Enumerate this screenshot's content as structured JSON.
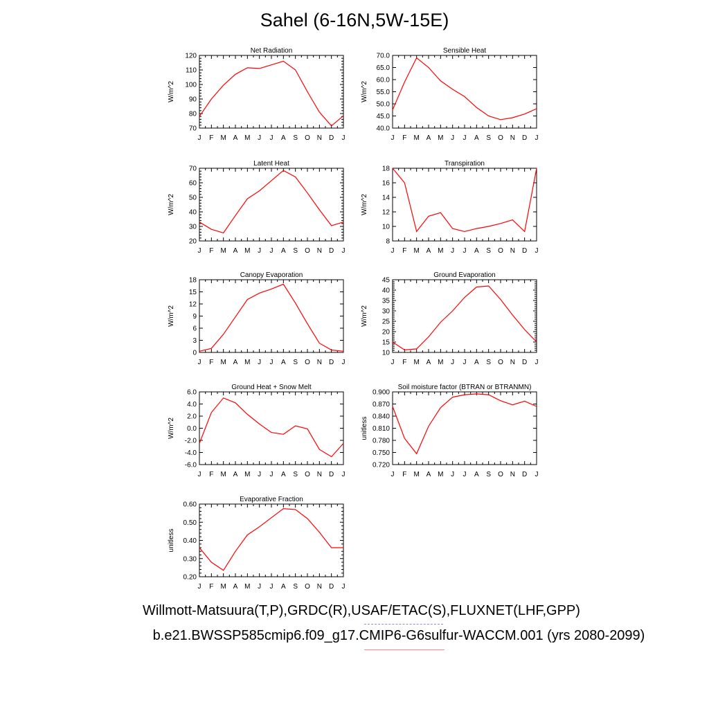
{
  "page_title": "Sahel (6-16N,5W-15E)",
  "footer": {
    "line1": "Willmott-Matsuura(T,P),GRDC(R),USAF/ETAC(S),FLUXNET(LHF,GPP)",
    "line2": "b.e21.BWSSP585cmip6.f09_g17.CMIP6-G6sulfur-WACCM.001 (yrs 2080-2099)"
  },
  "colors": {
    "series": "#ff0000",
    "axis": "#000000",
    "ul_dashed": "#8a8af0",
    "ul_solid": "#f08a8a"
  },
  "chart_data": [
    {
      "type": "line",
      "title": "Net Radiation",
      "ylabel": "W/m^2",
      "xlabel": "",
      "categories": [
        "J",
        "F",
        "M",
        "A",
        "M",
        "J",
        "J",
        "A",
        "S",
        "O",
        "N",
        "D",
        "J"
      ],
      "values": [
        78,
        90,
        99.5,
        107,
        111.5,
        111,
        113.5,
        116,
        110,
        95,
        81,
        71.5,
        78.5
      ],
      "ylim": [
        70,
        120
      ],
      "yticks": [
        "70",
        "80",
        "90",
        "100",
        "110",
        "120"
      ],
      "ytick_values": [
        70,
        80,
        90,
        100,
        110,
        120
      ],
      "yminor": 5
    },
    {
      "type": "line",
      "title": "Sensible Heat",
      "ylabel": "W/m^2",
      "xlabel": "",
      "categories": [
        "J",
        "F",
        "M",
        "A",
        "M",
        "J",
        "J",
        "A",
        "S",
        "O",
        "N",
        "D",
        "J"
      ],
      "values": [
        47.5,
        59,
        69,
        65,
        59.5,
        56,
        53,
        48.5,
        45,
        43.5,
        44.3,
        45.8,
        48
      ],
      "ylim": [
        40,
        70
      ],
      "yticks": [
        "40.0",
        "45.0",
        "50.0",
        "55.0",
        "60.0",
        "65.0",
        "70.0"
      ],
      "ytick_values": [
        40,
        45,
        50,
        55,
        60,
        65,
        70
      ],
      "yminor": 1
    },
    {
      "type": "line",
      "title": "Latent Heat",
      "ylabel": "W/m^2",
      "xlabel": "",
      "categories": [
        "J",
        "F",
        "M",
        "A",
        "M",
        "J",
        "J",
        "A",
        "S",
        "O",
        "N",
        "D",
        "J"
      ],
      "values": [
        33,
        28,
        25.5,
        37.5,
        49,
        54.5,
        61.5,
        68.5,
        64,
        53,
        41.5,
        30.5,
        33
      ],
      "ylim": [
        20,
        70
      ],
      "yticks": [
        "20",
        "30",
        "40",
        "50",
        "60",
        "70"
      ],
      "ytick_values": [
        20,
        30,
        40,
        50,
        60,
        70
      ],
      "yminor": 5
    },
    {
      "type": "line",
      "title": "Transpiration",
      "ylabel": "W/m^2",
      "xlabel": "",
      "categories": [
        "J",
        "F",
        "M",
        "A",
        "M",
        "J",
        "J",
        "A",
        "S",
        "O",
        "N",
        "D",
        "J"
      ],
      "values": [
        18,
        16,
        9.3,
        11.4,
        11.9,
        9.7,
        9.3,
        9.7,
        10,
        10.4,
        10.9,
        9.3,
        18
      ],
      "ylim": [
        8,
        18
      ],
      "yticks": [
        "8",
        "10",
        "12",
        "14",
        "16",
        "18"
      ],
      "ytick_values": [
        8,
        10,
        12,
        14,
        16,
        18
      ],
      "yminor": 1
    },
    {
      "type": "line",
      "title": "Canopy Evaporation",
      "ylabel": "W/m^2",
      "xlabel": "",
      "categories": [
        "J",
        "F",
        "M",
        "A",
        "M",
        "J",
        "J",
        "A",
        "S",
        "O",
        "N",
        "D",
        "J"
      ],
      "values": [
        0.3,
        1,
        4.5,
        8.8,
        13.1,
        14.7,
        15.7,
        16.9,
        12.2,
        7.1,
        2.3,
        0.6,
        0.3
      ],
      "ylim": [
        0,
        18
      ],
      "yticks": [
        "0",
        "3",
        "6",
        "9",
        "12",
        "15",
        "18"
      ],
      "ytick_values": [
        0,
        3,
        6,
        9,
        12,
        15,
        18
      ],
      "yminor": 1
    },
    {
      "type": "line",
      "title": "Ground Evaporation",
      "ylabel": "W/m^2",
      "xlabel": "",
      "categories": [
        "J",
        "F",
        "M",
        "A",
        "M",
        "J",
        "J",
        "A",
        "S",
        "O",
        "N",
        "D",
        "J"
      ],
      "values": [
        15,
        11.2,
        11.7,
        17.5,
        24.5,
        30,
        36.5,
        41.5,
        42,
        35.5,
        28,
        21,
        15
      ],
      "ylim": [
        10,
        45
      ],
      "yticks": [
        "10",
        "15",
        "20",
        "25",
        "30",
        "35",
        "40",
        "45"
      ],
      "ytick_values": [
        10,
        15,
        20,
        25,
        30,
        35,
        40,
        45
      ],
      "yminor": 5
    },
    {
      "type": "line",
      "title": "Ground Heat + Snow Melt",
      "ylabel": "W/m^2",
      "xlabel": "",
      "categories": [
        "J",
        "F",
        "M",
        "A",
        "M",
        "J",
        "J",
        "A",
        "S",
        "O",
        "N",
        "D",
        "J"
      ],
      "values": [
        -2.5,
        2.6,
        5,
        4.2,
        2.3,
        0.7,
        -0.7,
        -1,
        0.4,
        -0.1,
        -3.5,
        -4.7,
        -2.5
      ],
      "ylim": [
        -6,
        6
      ],
      "yticks": [
        "-6.0",
        "-4.0",
        "-2.0",
        "0.0",
        "2.0",
        "4.0",
        "6.0"
      ],
      "ytick_values": [
        -6,
        -4,
        -2,
        0,
        2,
        4,
        6
      ],
      "yminor": 1
    },
    {
      "type": "line",
      "title": "Soil moisture factor (BTRAN or BTRANMN)",
      "ylabel": "unitless",
      "xlabel": "",
      "categories": [
        "J",
        "F",
        "M",
        "A",
        "M",
        "J",
        "J",
        "A",
        "S",
        "O",
        "N",
        "D",
        "J"
      ],
      "values": [
        0.864,
        0.785,
        0.747,
        0.815,
        0.861,
        0.887,
        0.893,
        0.895,
        0.893,
        0.878,
        0.868,
        0.877,
        0.864
      ],
      "ylim": [
        0.72,
        0.9
      ],
      "yticks": [
        "0.720",
        "0.750",
        "0.780",
        "0.810",
        "0.840",
        "0.870",
        "0.900"
      ],
      "ytick_values": [
        0.72,
        0.75,
        0.78,
        0.81,
        0.84,
        0.87,
        0.9
      ],
      "yminor": 1
    },
    {
      "type": "line",
      "title": "Evaporative Fraction",
      "ylabel": "unitless",
      "xlabel": "",
      "categories": [
        "J",
        "F",
        "M",
        "A",
        "M",
        "J",
        "J",
        "A",
        "S",
        "O",
        "N",
        "D",
        "J"
      ],
      "values": [
        0.36,
        0.28,
        0.235,
        0.34,
        0.43,
        0.475,
        0.525,
        0.575,
        0.57,
        0.52,
        0.445,
        0.36,
        0.36
      ],
      "ylim": [
        0.2,
        0.6
      ],
      "yticks": [
        "0.20",
        "0.30",
        "0.40",
        "0.50",
        "0.60"
      ],
      "ytick_values": [
        0.2,
        0.3,
        0.4,
        0.5,
        0.6
      ],
      "yminor": 5
    }
  ]
}
